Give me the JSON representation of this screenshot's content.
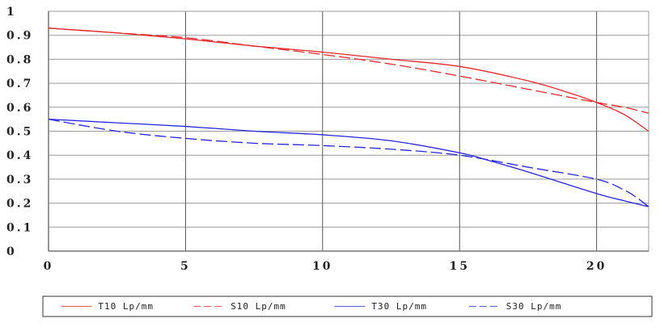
{
  "chart_data": {
    "type": "line",
    "title": "",
    "xlabel": "",
    "ylabel": "",
    "xlim": [
      0,
      21.9
    ],
    "ylim": [
      0,
      1
    ],
    "grid": true,
    "legend_position": "bottom",
    "x_ticks": [
      0,
      5,
      10,
      15,
      20
    ],
    "x_tick_labels": [
      "0",
      "5",
      "10",
      "15",
      "20"
    ],
    "y_ticks": [
      0,
      0.1,
      0.2,
      0.3,
      0.4,
      0.5,
      0.6,
      0.7,
      0.8,
      0.9,
      1
    ],
    "y_tick_labels": [
      "0",
      "0.1",
      "0.2",
      "0.3",
      "0.4",
      "0.5",
      "0.6",
      "0.7",
      "0.8",
      "0.9",
      "1"
    ],
    "series": [
      {
        "name": "T10 Lp/mm",
        "color": "#e8272b",
        "dash": false,
        "x": [
          0,
          2.5,
          5,
          7.5,
          10,
          12.5,
          15,
          17.5,
          19,
          20,
          21,
          21.9
        ],
        "y": [
          0.93,
          0.91,
          0.885,
          0.855,
          0.83,
          0.8,
          0.77,
          0.71,
          0.66,
          0.62,
          0.57,
          0.5
        ]
      },
      {
        "name": "S10 Lp/mm",
        "color": "#e8272b",
        "dash": true,
        "x": [
          0,
          2.5,
          5,
          7.5,
          10,
          12.5,
          15,
          17.5,
          20,
          21,
          21.9
        ],
        "y": [
          0.93,
          0.91,
          0.89,
          0.855,
          0.82,
          0.78,
          0.73,
          0.675,
          0.62,
          0.6,
          0.575
        ]
      },
      {
        "name": "T30 Lp/mm",
        "color": "#2626e0",
        "dash": false,
        "x": [
          0,
          2.5,
          5,
          7.5,
          10,
          12.5,
          15,
          16,
          17.5,
          20,
          21,
          21.9
        ],
        "y": [
          0.55,
          0.535,
          0.52,
          0.5,
          0.485,
          0.46,
          0.41,
          0.38,
          0.33,
          0.24,
          0.21,
          0.185
        ]
      },
      {
        "name": "S30 Lp/mm",
        "color": "#2626e0",
        "dash": true,
        "x": [
          0,
          2.5,
          5,
          7.5,
          10,
          12.5,
          15,
          17.5,
          20,
          21,
          21.5,
          21.9
        ],
        "y": [
          0.55,
          0.5,
          0.47,
          0.45,
          0.44,
          0.425,
          0.4,
          0.35,
          0.3,
          0.255,
          0.22,
          0.185
        ]
      }
    ]
  }
}
